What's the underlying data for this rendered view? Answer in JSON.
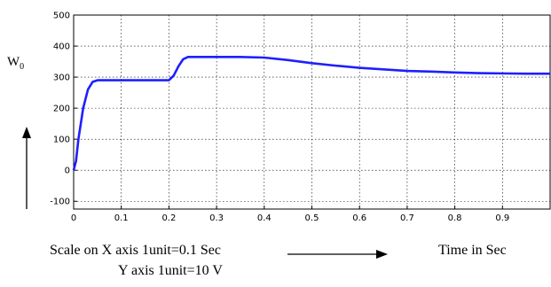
{
  "chart_data": {
    "type": "line",
    "ylabel_main": "W",
    "ylabel_sub": "0",
    "x_ticks": [
      "0",
      "0.1",
      "0.2",
      "0.3",
      "0.4",
      "0.5",
      "0.6",
      "0.7",
      "0.8",
      "0.9"
    ],
    "x_tick_values": [
      0,
      0.1,
      0.2,
      0.3,
      0.4,
      0.5,
      0.6,
      0.7,
      0.8,
      0.9
    ],
    "y_ticks": [
      "-100",
      "0",
      "100",
      "200",
      "300",
      "400",
      "500"
    ],
    "y_tick_values": [
      -100,
      0,
      100,
      200,
      300,
      400,
      500
    ],
    "xlim": [
      0,
      1.0
    ],
    "ylim": [
      -125,
      500
    ],
    "grid": true,
    "series": [
      {
        "color": "#1f1fff",
        "x": [
          0,
          0.005,
          0.01,
          0.02,
          0.03,
          0.04,
          0.05,
          0.1,
          0.15,
          0.2,
          0.21,
          0.22,
          0.23,
          0.24,
          0.3,
          0.35,
          0.4,
          0.45,
          0.5,
          0.55,
          0.6,
          0.65,
          0.7,
          0.75,
          0.8,
          0.85,
          0.9,
          0.95,
          1.0
        ],
        "y": [
          0,
          30,
          100,
          200,
          260,
          285,
          290,
          290,
          290,
          290,
          305,
          335,
          358,
          365,
          365,
          365,
          363,
          355,
          345,
          337,
          330,
          325,
          320,
          318,
          315,
          313,
          312,
          311,
          311
        ]
      }
    ]
  },
  "annotations": {
    "x_scale": "Scale on X axis 1unit=0.1 Sec",
    "y_scale": "Y axis 1unit=10 V",
    "time_label": "Time in Sec"
  },
  "colors": {
    "line": "#1f1fff",
    "grid": "#000000"
  }
}
